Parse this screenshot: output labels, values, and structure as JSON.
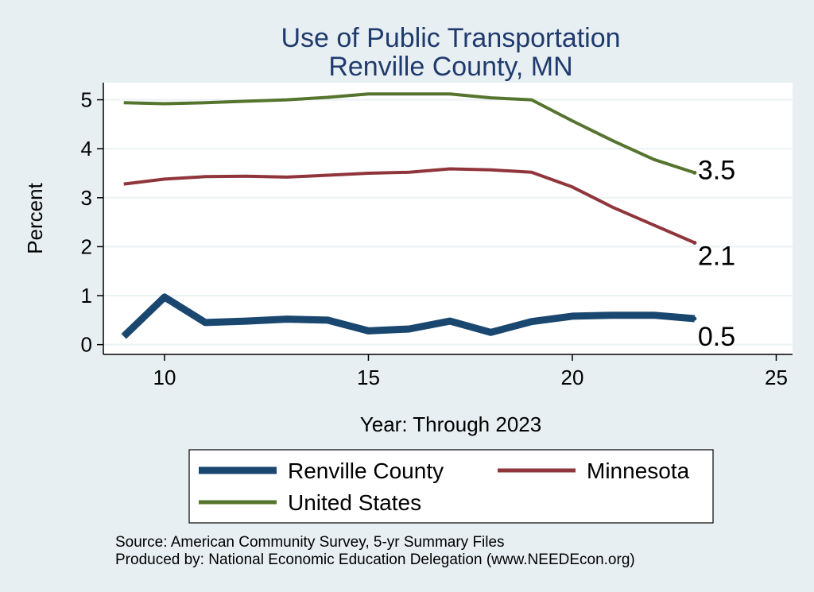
{
  "chart_data": {
    "type": "line",
    "title": [
      "Use of Public Transportation",
      "Renville County, MN"
    ],
    "xlabel": "Year: Through 2023",
    "ylabel": "Percent",
    "xlim": [
      8.5,
      25.4
    ],
    "ylim": [
      -0.2,
      5.35
    ],
    "xticks": [
      10,
      15,
      20,
      25
    ],
    "yticks": [
      0,
      1,
      2,
      3,
      4,
      5
    ],
    "grid": true,
    "legend_position": "bottom",
    "x": [
      9,
      10,
      11,
      12,
      13,
      14,
      15,
      16,
      17,
      18,
      19,
      20,
      21,
      22,
      23
    ],
    "series": [
      {
        "name": "Renville County",
        "color": "#1a476f",
        "width": 9,
        "values": [
          0.17,
          0.97,
          0.45,
          0.48,
          0.52,
          0.5,
          0.28,
          0.32,
          0.48,
          0.25,
          0.47,
          0.58,
          0.6,
          0.6,
          0.53
        ],
        "end_label": "0.5"
      },
      {
        "name": "Minnesota",
        "color": "#90353b",
        "width": 4,
        "values": [
          3.28,
          3.38,
          3.43,
          3.44,
          3.42,
          3.46,
          3.5,
          3.52,
          3.59,
          3.57,
          3.52,
          3.22,
          2.8,
          2.44,
          2.08
        ],
        "end_label": "2.1"
      },
      {
        "name": "United States",
        "color": "#55752f",
        "width": 4,
        "values": [
          4.94,
          4.92,
          4.94,
          4.97,
          5.0,
          5.05,
          5.12,
          5.12,
          5.12,
          5.04,
          5.0,
          4.57,
          4.16,
          3.78,
          3.51
        ],
        "end_label": "3.5"
      }
    ],
    "notes": [
      "Source: American Community Survey, 5-yr Summary Files",
      "Produced by: National Economic Education Delegation (www.NEEDEcon.org)"
    ]
  }
}
